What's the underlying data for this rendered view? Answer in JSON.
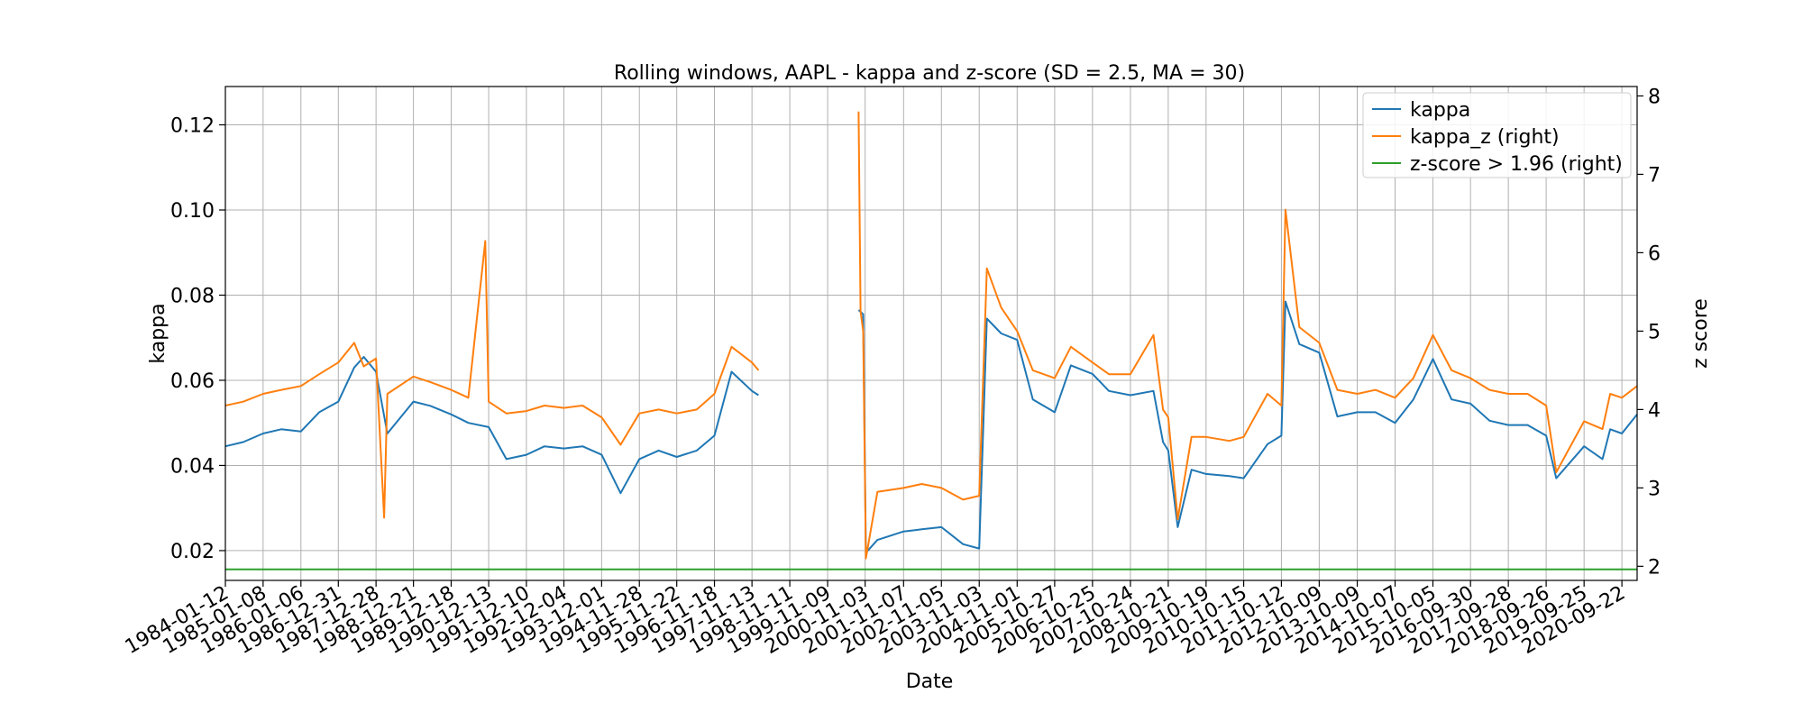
{
  "chart_data": {
    "type": "line",
    "title": "Rolling windows, AAPL - kappa and z-score (SD = 2.5, MA = 30)",
    "xlabel": "Date",
    "ylabel": "kappa",
    "ylabel_right": "z score",
    "ylim": [
      0.013,
      0.129
    ],
    "ylim_right": [
      1.82,
      8.12
    ],
    "yticks": [
      0.02,
      0.04,
      0.06,
      0.08,
      0.1,
      0.12
    ],
    "yticks_right": [
      2,
      3,
      4,
      5,
      6,
      7,
      8
    ],
    "grid": true,
    "legend_position": "top-right",
    "colors": {
      "kappa": "#1f77b4",
      "kappa_z": "#ff7f0e",
      "threshold": "#2ca02c"
    },
    "x_tick_labels": [
      "1984-01-12",
      "1985-01-08",
      "1986-01-06",
      "1986-12-31",
      "1987-12-28",
      "1988-12-21",
      "1989-12-18",
      "1990-12-13",
      "1991-12-10",
      "1992-12-04",
      "1993-12-01",
      "1994-11-28",
      "1995-11-22",
      "1996-11-18",
      "1997-11-13",
      "1998-11-11",
      "1999-11-09",
      "2000-11-03",
      "2001-11-07",
      "2002-11-05",
      "2003-11-03",
      "2004-11-01",
      "2005-10-27",
      "2006-10-25",
      "2007-10-24",
      "2008-10-21",
      "2009-10-19",
      "2010-10-15",
      "2011-10-12",
      "2012-10-09",
      "2013-10-09",
      "2014-10-07",
      "2015-10-05",
      "2016-09-30",
      "2017-09-28",
      "2018-09-26",
      "2019-09-25",
      "2020-09-22"
    ],
    "x_range": [
      "1984-01-12",
      "2021-02-15"
    ],
    "series": [
      {
        "name": "kappa",
        "axis": "left",
        "points": [
          [
            "1984-01-12",
            0.0445
          ],
          [
            "1984-07-01",
            0.0455
          ],
          [
            "1985-01-08",
            0.0475
          ],
          [
            "1985-07-01",
            0.0485
          ],
          [
            "1986-01-06",
            0.048
          ],
          [
            "1986-07-01",
            0.0525
          ],
          [
            "1986-12-31",
            0.055
          ],
          [
            "1987-06-01",
            0.063
          ],
          [
            "1987-09-01",
            0.0655
          ],
          [
            "1987-12-28",
            0.062
          ],
          [
            "1988-04-15",
            0.0475
          ],
          [
            "1988-12-21",
            0.055
          ],
          [
            "1989-06-01",
            0.054
          ],
          [
            "1989-12-18",
            0.052
          ],
          [
            "1990-06-01",
            0.05
          ],
          [
            "1990-12-13",
            0.049
          ],
          [
            "1991-06-01",
            0.0415
          ],
          [
            "1991-12-10",
            0.0425
          ],
          [
            "1992-06-01",
            0.0445
          ],
          [
            "1992-12-04",
            0.044
          ],
          [
            "1993-06-01",
            0.0445
          ],
          [
            "1993-12-01",
            0.0425
          ],
          [
            "1994-06-01",
            0.0335
          ],
          [
            "1994-11-28",
            0.0415
          ],
          [
            "1995-06-01",
            0.0435
          ],
          [
            "1995-11-22",
            0.042
          ],
          [
            "1996-06-01",
            0.0435
          ],
          [
            "1996-11-18",
            0.047
          ],
          [
            "1997-05-01",
            0.062
          ],
          [
            "1997-11-13",
            0.0575
          ],
          [
            "1998-01-15",
            0.0565
          ],
          null,
          [
            "2000-09-01",
            0.0765
          ],
          [
            "2000-10-15",
            0.0755
          ],
          [
            "2000-11-10",
            0.0195
          ],
          [
            "2001-03-01",
            0.0225
          ],
          [
            "2001-11-07",
            0.0245
          ],
          [
            "2002-05-01",
            0.025
          ],
          [
            "2002-11-05",
            0.0255
          ],
          [
            "2003-06-01",
            0.0215
          ],
          [
            "2003-11-03",
            0.0205
          ],
          [
            "2004-01-15",
            0.0745
          ],
          [
            "2004-06-01",
            0.071
          ],
          [
            "2004-11-01",
            0.0695
          ],
          [
            "2005-04-01",
            0.0555
          ],
          [
            "2005-10-27",
            0.0525
          ],
          [
            "2006-04-01",
            0.0635
          ],
          [
            "2006-10-25",
            0.0615
          ],
          [
            "2007-04-01",
            0.0575
          ],
          [
            "2007-10-24",
            0.0565
          ],
          [
            "2008-06-01",
            0.0575
          ],
          [
            "2008-09-01",
            0.0455
          ],
          [
            "2008-10-21",
            0.0435
          ],
          [
            "2009-01-20",
            0.0255
          ],
          [
            "2009-06-01",
            0.039
          ],
          [
            "2009-10-19",
            0.038
          ],
          [
            "2010-06-01",
            0.0375
          ],
          [
            "2010-10-15",
            0.037
          ],
          [
            "2011-06-01",
            0.045
          ],
          [
            "2011-10-12",
            0.047
          ],
          [
            "2011-11-20",
            0.0785
          ],
          [
            "2012-04-01",
            0.0685
          ],
          [
            "2012-10-09",
            0.0665
          ],
          [
            "2013-04-01",
            0.0515
          ],
          [
            "2013-10-09",
            0.0525
          ],
          [
            "2014-04-01",
            0.0525
          ],
          [
            "2014-10-07",
            0.05
          ],
          [
            "2015-04-01",
            0.0555
          ],
          [
            "2015-10-05",
            0.065
          ],
          [
            "2016-04-01",
            0.0555
          ],
          [
            "2016-09-30",
            0.0545
          ],
          [
            "2017-04-01",
            0.0505
          ],
          [
            "2017-09-28",
            0.0495
          ],
          [
            "2018-04-01",
            0.0495
          ],
          [
            "2018-09-26",
            0.047
          ],
          [
            "2019-01-01",
            0.037
          ],
          [
            "2019-09-25",
            0.0445
          ],
          [
            "2020-03-20",
            0.0415
          ],
          [
            "2020-06-01",
            0.0485
          ],
          [
            "2020-09-22",
            0.0475
          ],
          [
            "2021-02-15",
            0.052
          ]
        ]
      },
      {
        "name": "kappa_z (right)",
        "axis": "right",
        "points": [
          [
            "1984-01-12",
            4.05
          ],
          [
            "1984-07-01",
            4.1
          ],
          [
            "1985-01-08",
            4.2
          ],
          [
            "1985-07-01",
            4.25
          ],
          [
            "1986-01-06",
            4.3
          ],
          [
            "1986-07-01",
            4.45
          ],
          [
            "1986-12-31",
            4.6
          ],
          [
            "1987-06-01",
            4.85
          ],
          [
            "1987-09-01",
            4.55
          ],
          [
            "1987-12-28",
            4.65
          ],
          [
            "1988-03-15",
            2.62
          ],
          [
            "1988-04-15",
            4.2
          ],
          [
            "1988-12-21",
            4.42
          ],
          [
            "1989-06-01",
            4.35
          ],
          [
            "1989-12-18",
            4.25
          ],
          [
            "1990-06-01",
            4.15
          ],
          [
            "1990-11-10",
            6.15
          ],
          [
            "1990-12-13",
            4.1
          ],
          [
            "1991-06-01",
            3.95
          ],
          [
            "1991-12-10",
            3.98
          ],
          [
            "1992-06-01",
            4.05
          ],
          [
            "1992-12-04",
            4.02
          ],
          [
            "1993-06-01",
            4.05
          ],
          [
            "1993-12-01",
            3.9
          ],
          [
            "1994-06-01",
            3.55
          ],
          [
            "1994-11-28",
            3.95
          ],
          [
            "1995-06-01",
            4.0
          ],
          [
            "1995-11-22",
            3.95
          ],
          [
            "1996-06-01",
            4.0
          ],
          [
            "1996-11-18",
            4.2
          ],
          [
            "1997-05-01",
            4.8
          ],
          [
            "1997-11-13",
            4.6
          ],
          [
            "1998-01-15",
            4.5
          ],
          null,
          [
            "2000-09-01",
            7.8
          ],
          [
            "2000-09-20",
            5.25
          ],
          [
            "2000-10-15",
            5.0
          ],
          [
            "2000-11-10",
            2.1
          ],
          [
            "2001-03-01",
            2.95
          ],
          [
            "2001-11-07",
            3.0
          ],
          [
            "2002-05-01",
            3.05
          ],
          [
            "2002-11-05",
            3.0
          ],
          [
            "2003-06-01",
            2.85
          ],
          [
            "2003-11-03",
            2.9
          ],
          [
            "2004-01-15",
            5.8
          ],
          [
            "2004-06-01",
            5.3
          ],
          [
            "2004-11-01",
            5.0
          ],
          [
            "2005-04-01",
            4.5
          ],
          [
            "2005-10-27",
            4.4
          ],
          [
            "2006-04-01",
            4.8
          ],
          [
            "2006-10-25",
            4.6
          ],
          [
            "2007-04-01",
            4.45
          ],
          [
            "2007-10-24",
            4.45
          ],
          [
            "2008-06-01",
            4.95
          ],
          [
            "2008-09-01",
            4.0
          ],
          [
            "2008-10-21",
            3.9
          ],
          [
            "2009-01-20",
            2.6
          ],
          [
            "2009-06-01",
            3.65
          ],
          [
            "2009-10-19",
            3.65
          ],
          [
            "2010-06-01",
            3.6
          ],
          [
            "2010-10-15",
            3.65
          ],
          [
            "2011-06-01",
            4.2
          ],
          [
            "2011-10-12",
            4.05
          ],
          [
            "2011-11-20",
            6.55
          ],
          [
            "2012-04-01",
            5.05
          ],
          [
            "2012-10-09",
            4.85
          ],
          [
            "2013-04-01",
            4.25
          ],
          [
            "2013-10-09",
            4.2
          ],
          [
            "2014-04-01",
            4.25
          ],
          [
            "2014-10-07",
            4.15
          ],
          [
            "2015-04-01",
            4.4
          ],
          [
            "2015-10-05",
            4.95
          ],
          [
            "2016-04-01",
            4.5
          ],
          [
            "2016-09-30",
            4.4
          ],
          [
            "2017-04-01",
            4.25
          ],
          [
            "2017-09-28",
            4.2
          ],
          [
            "2018-04-01",
            4.2
          ],
          [
            "2018-09-26",
            4.05
          ],
          [
            "2019-01-01",
            3.2
          ],
          [
            "2019-09-25",
            3.85
          ],
          [
            "2020-03-20",
            3.75
          ],
          [
            "2020-06-01",
            4.2
          ],
          [
            "2020-09-22",
            4.15
          ],
          [
            "2021-02-15",
            4.3
          ]
        ]
      },
      {
        "name": "z-score > 1.96 (right)",
        "axis": "right",
        "points": [
          [
            "1984-01-12",
            1.96
          ],
          [
            "2021-02-15",
            1.96
          ]
        ]
      }
    ]
  }
}
